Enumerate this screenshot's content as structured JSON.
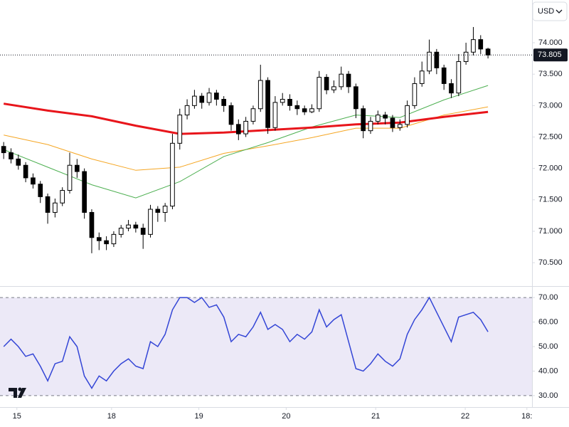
{
  "currency": "USD",
  "chart_data": [
    {
      "type": "candlestick",
      "xlim": [
        -0.5,
        72
      ],
      "xticks": [
        {
          "value": 1.8,
          "label": "15"
        },
        {
          "value": 14.7,
          "label": "18"
        },
        {
          "value": 26.6,
          "label": "19"
        },
        {
          "value": 38.5,
          "label": "20"
        },
        {
          "value": 50.7,
          "label": "21"
        },
        {
          "value": 62.9,
          "label": "22"
        },
        {
          "value": 71.3,
          "label": "18:"
        }
      ],
      "ylim": [
        70.15,
        74.68
      ],
      "yticks": [
        {
          "value": 70.5,
          "label": "70.500"
        },
        {
          "value": 71,
          "label": "71.000"
        },
        {
          "value": 71.5,
          "label": "71.500"
        },
        {
          "value": 72,
          "label": "72.000"
        },
        {
          "value": 72.5,
          "label": "72.500"
        },
        {
          "value": 73,
          "label": "73.000"
        },
        {
          "value": 73.5,
          "label": "73.500"
        },
        {
          "value": 74,
          "label": "74.000"
        }
      ],
      "up_color": "#ffffff",
      "down_color": "#000000",
      "open": [
        72.35,
        72.25,
        72.15,
        72.05,
        71.85,
        71.75,
        71.55,
        71.3,
        71.45,
        71.65,
        72.05,
        71.95,
        71.3,
        70.9,
        70.85,
        70.8,
        70.95,
        71.05,
        71.1,
        71.05,
        70.95,
        71.35,
        71.3,
        71.4,
        72.4,
        72.85,
        73.0,
        73.15,
        73.05,
        73.2,
        73.1,
        73.0,
        72.7,
        72.55,
        72.75,
        72.95,
        73.4,
        72.65,
        73.05,
        73.1,
        73.0,
        72.95,
        72.9,
        72.95,
        73.45,
        73.25,
        73.3,
        73.5,
        73.3,
        72.95,
        72.6,
        72.75,
        72.85,
        72.8,
        72.65,
        72.7,
        73.0,
        73.35,
        73.55,
        73.85,
        73.6,
        73.35,
        73.2,
        73.7,
        73.85,
        74.05,
        73.9
      ],
      "high": [
        72.42,
        72.32,
        72.22,
        72.1,
        71.92,
        71.8,
        71.6,
        71.52,
        71.7,
        72.25,
        72.15,
        72.0,
        71.35,
        70.98,
        70.92,
        71.0,
        71.1,
        71.18,
        71.15,
        71.12,
        71.42,
        71.4,
        71.45,
        72.55,
        72.95,
        73.1,
        73.25,
        73.2,
        73.28,
        73.25,
        73.15,
        73.05,
        72.78,
        72.82,
        73.0,
        73.65,
        73.45,
        73.15,
        73.2,
        73.18,
        73.08,
        73.0,
        73.02,
        73.55,
        73.5,
        73.4,
        73.62,
        73.55,
        73.35,
        73.0,
        72.82,
        72.92,
        72.9,
        72.85,
        72.78,
        73.08,
        73.45,
        73.7,
        74.05,
        73.9,
        73.65,
        73.42,
        73.82,
        74.0,
        74.25,
        74.12,
        73.92
      ],
      "low": [
        72.15,
        72.08,
        71.98,
        71.78,
        71.68,
        71.45,
        71.12,
        71.22,
        71.4,
        71.6,
        71.85,
        71.2,
        70.65,
        70.7,
        70.7,
        70.75,
        70.9,
        71.0,
        70.98,
        70.72,
        70.9,
        71.15,
        71.15,
        71.35,
        72.3,
        72.78,
        72.95,
        72.95,
        73.0,
        73.0,
        72.9,
        72.6,
        72.45,
        72.5,
        72.7,
        72.9,
        72.55,
        72.6,
        73.0,
        72.92,
        72.85,
        72.85,
        72.88,
        72.9,
        73.18,
        73.2,
        73.25,
        73.2,
        72.8,
        72.48,
        72.55,
        72.7,
        72.7,
        72.58,
        72.6,
        72.65,
        72.95,
        73.3,
        73.5,
        73.5,
        73.25,
        73.12,
        73.15,
        73.65,
        73.8,
        73.82,
        73.75
      ],
      "close": [
        72.25,
        72.15,
        72.05,
        71.85,
        71.75,
        71.55,
        71.3,
        71.45,
        71.65,
        72.05,
        71.95,
        71.3,
        70.9,
        70.85,
        70.8,
        70.95,
        71.05,
        71.1,
        71.05,
        70.95,
        71.35,
        71.3,
        71.4,
        72.4,
        72.85,
        73.0,
        73.15,
        73.05,
        73.2,
        73.1,
        73.0,
        72.7,
        72.55,
        72.75,
        72.95,
        73.4,
        72.65,
        73.05,
        73.1,
        73.0,
        72.95,
        72.9,
        72.95,
        73.45,
        73.25,
        73.3,
        73.5,
        73.3,
        72.95,
        72.6,
        72.75,
        72.85,
        72.8,
        72.65,
        72.7,
        73.0,
        73.35,
        73.55,
        73.85,
        73.6,
        73.35,
        73.2,
        73.7,
        73.85,
        74.05,
        73.9,
        73.805
      ],
      "series": [
        {
          "color": "#f5a623",
          "width": 1,
          "x": [
            0,
            6,
            12,
            18,
            24,
            30,
            36,
            42,
            48,
            54,
            60,
            66
          ],
          "values": [
            72.53,
            72.38,
            72.15,
            71.97,
            72.02,
            72.24,
            72.36,
            72.49,
            72.64,
            72.64,
            72.85,
            72.98
          ]
        },
        {
          "color": "#4caf50",
          "width": 1,
          "x": [
            0,
            6,
            12,
            18,
            24,
            30,
            36,
            42,
            48,
            54,
            60,
            66
          ],
          "values": [
            72.3,
            72.02,
            71.74,
            71.53,
            71.79,
            72.19,
            72.41,
            72.66,
            72.85,
            72.81,
            73.09,
            73.32
          ]
        },
        {
          "color": "#e8151b",
          "width": 3,
          "x": [
            0,
            6,
            12,
            18,
            24,
            30,
            36,
            42,
            48,
            54,
            60,
            66
          ],
          "values": [
            73.03,
            72.92,
            72.83,
            72.68,
            72.55,
            72.57,
            72.61,
            72.65,
            72.7,
            72.73,
            72.82,
            72.9
          ]
        }
      ]
    },
    {
      "type": "line",
      "xlim": [
        -0.5,
        72
      ],
      "ylim": [
        25.9,
        73.8
      ],
      "yticks": [
        {
          "value": 30,
          "label": "30.00"
        },
        {
          "value": 40,
          "label": "40.00"
        },
        {
          "value": 50,
          "label": "50.00"
        },
        {
          "value": 60,
          "label": "60.00"
        },
        {
          "value": 70,
          "label": "70.00"
        }
      ],
      "band": [
        30,
        70
      ],
      "band_color": "#ece9f7",
      "color": "#3345d6",
      "values": [
        50,
        53,
        50,
        46,
        47,
        42,
        36,
        43,
        44,
        54,
        50,
        38,
        33,
        38,
        36,
        40,
        43,
        45,
        42,
        41,
        52,
        50,
        55,
        65,
        70,
        70,
        68,
        70,
        66,
        67,
        62,
        52,
        55,
        54,
        58,
        64,
        57,
        59,
        57,
        52,
        55,
        53,
        56,
        65,
        58,
        61,
        63,
        52,
        41,
        40,
        43,
        47,
        44,
        42,
        45,
        55,
        61,
        65,
        70,
        64,
        58,
        52,
        62,
        63,
        64,
        61,
        56
      ]
    }
  ]
}
